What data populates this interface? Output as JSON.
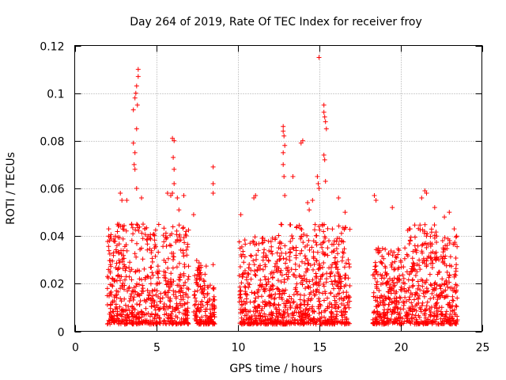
{
  "chart_data": {
    "type": "scatter",
    "title": "Day 264 of 2019, Rate Of TEC Index for receiver froy",
    "xlabel": "GPS time / hours",
    "ylabel": "ROTI / TECUs",
    "xlim": [
      0,
      25
    ],
    "ylim": [
      0,
      0.12
    ],
    "x_ticks": [
      0,
      5,
      10,
      15,
      20,
      25
    ],
    "x_tick_labels": [
      "0",
      "5",
      "10",
      "15",
      "20",
      "25"
    ],
    "y_ticks": [
      0,
      0.02,
      0.04,
      0.06,
      0.08,
      0.1,
      0.12
    ],
    "y_tick_labels": [
      "0",
      "0.02",
      "0.04",
      "0.06",
      "0.08",
      "0.1",
      "0.12"
    ],
    "grid": true,
    "marker": "+",
    "series": [
      {
        "name": "ROTI",
        "color": "#ff0000",
        "clusters": [
          {
            "x_start": 2.0,
            "x_end": 5.3,
            "y_max": 0.045
          },
          {
            "x_start": 5.4,
            "x_end": 7.0,
            "y_max": 0.045
          },
          {
            "x_start": 7.3,
            "x_end": 8.1,
            "y_max": 0.03
          },
          {
            "x_start": 8.1,
            "x_end": 8.6,
            "y_max": 0.02
          },
          {
            "x_start": 10.1,
            "x_end": 12.5,
            "y_max": 0.04
          },
          {
            "x_start": 12.5,
            "x_end": 14.5,
            "y_max": 0.045
          },
          {
            "x_start": 14.5,
            "x_end": 16.9,
            "y_max": 0.045
          },
          {
            "x_start": 18.3,
            "x_end": 20.4,
            "y_max": 0.035
          },
          {
            "x_start": 20.4,
            "x_end": 22.5,
            "y_max": 0.045
          },
          {
            "x_start": 22.5,
            "x_end": 23.5,
            "y_max": 0.04
          }
        ],
        "points": [
          [
            3.6,
            0.093
          ],
          [
            3.7,
            0.098
          ],
          [
            3.75,
            0.1
          ],
          [
            3.8,
            0.103
          ],
          [
            3.85,
            0.095
          ],
          [
            3.9,
            0.11
          ],
          [
            3.9,
            0.107
          ],
          [
            3.8,
            0.085
          ],
          [
            3.6,
            0.079
          ],
          [
            3.7,
            0.075
          ],
          [
            3.65,
            0.07
          ],
          [
            3.7,
            0.068
          ],
          [
            3.8,
            0.06
          ],
          [
            6.0,
            0.081
          ],
          [
            6.1,
            0.08
          ],
          [
            6.05,
            0.073
          ],
          [
            6.1,
            0.068
          ],
          [
            6.1,
            0.062
          ],
          [
            6.0,
            0.058
          ],
          [
            6.3,
            0.056
          ],
          [
            8.5,
            0.069
          ],
          [
            8.5,
            0.062
          ],
          [
            8.5,
            0.058
          ],
          [
            8.5,
            0.028
          ],
          [
            8.55,
            0.007
          ],
          [
            8.5,
            0.004
          ],
          [
            12.8,
            0.086
          ],
          [
            12.8,
            0.084
          ],
          [
            12.85,
            0.082
          ],
          [
            12.9,
            0.078
          ],
          [
            12.8,
            0.075
          ],
          [
            12.8,
            0.07
          ],
          [
            12.85,
            0.065
          ],
          [
            13.4,
            0.065
          ],
          [
            13.9,
            0.079
          ],
          [
            14.0,
            0.08
          ],
          [
            15.0,
            0.115
          ],
          [
            14.9,
            0.065
          ],
          [
            14.95,
            0.062
          ],
          [
            15.0,
            0.06
          ],
          [
            15.3,
            0.095
          ],
          [
            15.3,
            0.092
          ],
          [
            15.35,
            0.09
          ],
          [
            15.4,
            0.088
          ],
          [
            15.45,
            0.085
          ],
          [
            15.3,
            0.074
          ],
          [
            15.35,
            0.072
          ],
          [
            15.4,
            0.063
          ],
          [
            10.2,
            0.049
          ],
          [
            11.0,
            0.056
          ],
          [
            11.1,
            0.057
          ],
          [
            12.9,
            0.057
          ],
          [
            14.3,
            0.054
          ],
          [
            14.4,
            0.051
          ],
          [
            14.6,
            0.055
          ],
          [
            16.2,
            0.056
          ],
          [
            16.6,
            0.05
          ],
          [
            18.4,
            0.057
          ],
          [
            18.5,
            0.055
          ],
          [
            19.5,
            0.052
          ],
          [
            20.6,
            0.038
          ],
          [
            21.3,
            0.056
          ],
          [
            21.5,
            0.059
          ],
          [
            21.6,
            0.058
          ],
          [
            22.1,
            0.052
          ],
          [
            22.7,
            0.048
          ],
          [
            23.0,
            0.05
          ],
          [
            23.3,
            0.043
          ],
          [
            23.45,
            0.04
          ],
          [
            2.8,
            0.058
          ],
          [
            2.9,
            0.055
          ],
          [
            3.2,
            0.055
          ],
          [
            4.1,
            0.056
          ],
          [
            5.7,
            0.058
          ],
          [
            5.9,
            0.057
          ],
          [
            6.4,
            0.051
          ],
          [
            6.7,
            0.057
          ],
          [
            7.3,
            0.049
          ],
          [
            2.2,
            0.008
          ],
          [
            2.3,
            0.012
          ],
          [
            2.4,
            0.038
          ],
          [
            2.5,
            0.04
          ],
          [
            3.5,
            0.045
          ],
          [
            4.2,
            0.045
          ],
          [
            4.5,
            0.04
          ],
          [
            4.9,
            0.035
          ],
          [
            5.1,
            0.02
          ]
        ]
      }
    ]
  }
}
